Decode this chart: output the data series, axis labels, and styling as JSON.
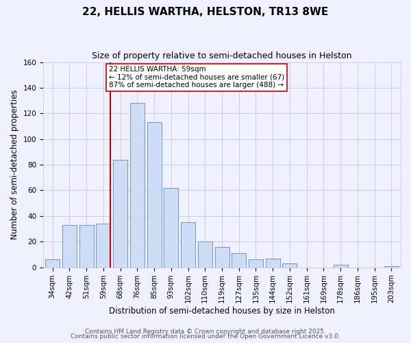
{
  "title": "22, HELLIS WARTHA, HELSTON, TR13 8WE",
  "subtitle": "Size of property relative to semi-detached houses in Helston",
  "xlabel": "Distribution of semi-detached houses by size in Helston",
  "ylabel": "Number of semi-detached properties",
  "categories": [
    "34sqm",
    "42sqm",
    "51sqm",
    "59sqm",
    "68sqm",
    "76sqm",
    "85sqm",
    "93sqm",
    "102sqm",
    "110sqm",
    "119sqm",
    "127sqm",
    "135sqm",
    "144sqm",
    "152sqm",
    "161sqm",
    "169sqm",
    "178sqm",
    "186sqm",
    "195sqm",
    "203sqm"
  ],
  "values": [
    6,
    33,
    33,
    34,
    84,
    128,
    113,
    62,
    35,
    20,
    16,
    11,
    6,
    7,
    3,
    0,
    0,
    2,
    0,
    0,
    1
  ],
  "bar_color": "#ccddf5",
  "bar_edge_color": "#6699cc",
  "marker_index": 3,
  "marker_label": "22 HELLIS WARTHA: 59sqm",
  "annotation_line1": "← 12% of semi-detached houses are smaller (67)",
  "annotation_line2": "87% of semi-detached houses are larger (488) →",
  "marker_color": "#cc0000",
  "ylim": [
    0,
    160
  ],
  "yticks": [
    0,
    20,
    40,
    60,
    80,
    100,
    120,
    140,
    160
  ],
  "footer1": "Contains HM Land Registry data © Crown copyright and database right 2025.",
  "footer2": "Contains public sector information licensed under the Open Government Licence v3.0.",
  "bg_color": "#f0f0ff",
  "grid_color": "#ccccdd",
  "title_fontsize": 11,
  "subtitle_fontsize": 9,
  "axis_label_fontsize": 8.5,
  "tick_fontsize": 7.5,
  "annotation_fontsize": 7.5,
  "footer_fontsize": 6.5
}
